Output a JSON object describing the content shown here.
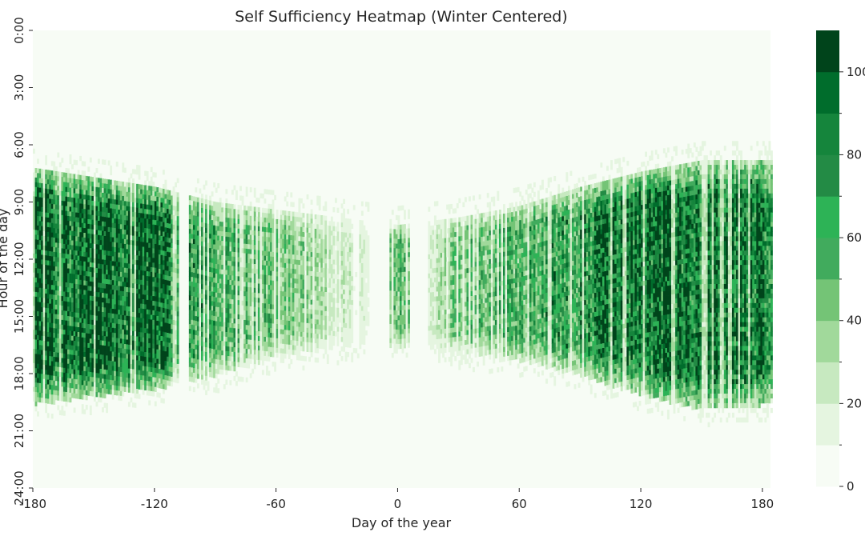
{
  "chart_data": {
    "type": "heatmap",
    "title": "Self Sufficiency Heatmap (Winter Centered)",
    "xlabel": "Day of the year",
    "ylabel": "Hour of the day",
    "xlim": [
      -180,
      184
    ],
    "ylim": [
      "0:00",
      "24:00"
    ],
    "x_ticks": [
      "-180",
      "-120",
      "-60",
      "0",
      "60",
      "120",
      "180"
    ],
    "y_ticks": [
      "0:00",
      "3:00",
      "6:00",
      "9:00",
      "12:00",
      "15:00",
      "18:00",
      "21:00",
      "24:00"
    ],
    "colorbar": {
      "min": 0,
      "max": 110,
      "levels": 11,
      "tick_labels": [
        "0",
        "20",
        "40",
        "60",
        "80",
        "100"
      ],
      "colors": [
        "#f7fcf5",
        "#e5f5e0",
        "#c7e9c0",
        "#a1d99b",
        "#74c476",
        "#41ab5d",
        "#2db356",
        "#238b45",
        "#15853c",
        "#006d2c",
        "#00441b"
      ]
    },
    "daylight_window": [
      {
        "day": -180,
        "sunrise": 7.0,
        "sunset": 19.5
      },
      {
        "day": -120,
        "sunrise": 8.0,
        "sunset": 18.7
      },
      {
        "day": -90,
        "sunrise": 8.8,
        "sunset": 18.0
      },
      {
        "day": -60,
        "sunrise": 9.2,
        "sunset": 17.0
      },
      {
        "day": -30,
        "sunrise": 9.6,
        "sunset": 16.5
      },
      {
        "day": 0,
        "sunrise": 10.0,
        "sunset": 16.5
      },
      {
        "day": 30,
        "sunrise": 9.6,
        "sunset": 16.8
      },
      {
        "day": 60,
        "sunrise": 9.0,
        "sunset": 17.2
      },
      {
        "day": 90,
        "sunrise": 8.0,
        "sunset": 18.0
      },
      {
        "day": 120,
        "sunrise": 7.2,
        "sunset": 19.0
      },
      {
        "day": 150,
        "sunrise": 6.6,
        "sunset": 19.8
      },
      {
        "day": 184,
        "sunrise": 6.6,
        "sunset": 19.5
      }
    ],
    "intensity_profile": [
      {
        "day": -180,
        "level": 0.85
      },
      {
        "day": -120,
        "level": 0.9
      },
      {
        "day": -105,
        "level": 0.6
      },
      {
        "day": -60,
        "level": 0.4
      },
      {
        "day": -30,
        "level": 0.2
      },
      {
        "day": -10,
        "level": 0.05
      },
      {
        "day": 0,
        "level": 0.5
      },
      {
        "day": 12,
        "level": 0.05
      },
      {
        "day": 30,
        "level": 0.4
      },
      {
        "day": 60,
        "level": 0.5
      },
      {
        "day": 90,
        "level": 0.65
      },
      {
        "day": 120,
        "level": 0.85
      },
      {
        "day": 150,
        "level": 0.85
      },
      {
        "day": 184,
        "level": 0.8
      }
    ],
    "gaps": [
      [
        -108,
        -104
      ],
      [
        -14,
        -5
      ],
      [
        6,
        14
      ]
    ],
    "grid": false
  }
}
